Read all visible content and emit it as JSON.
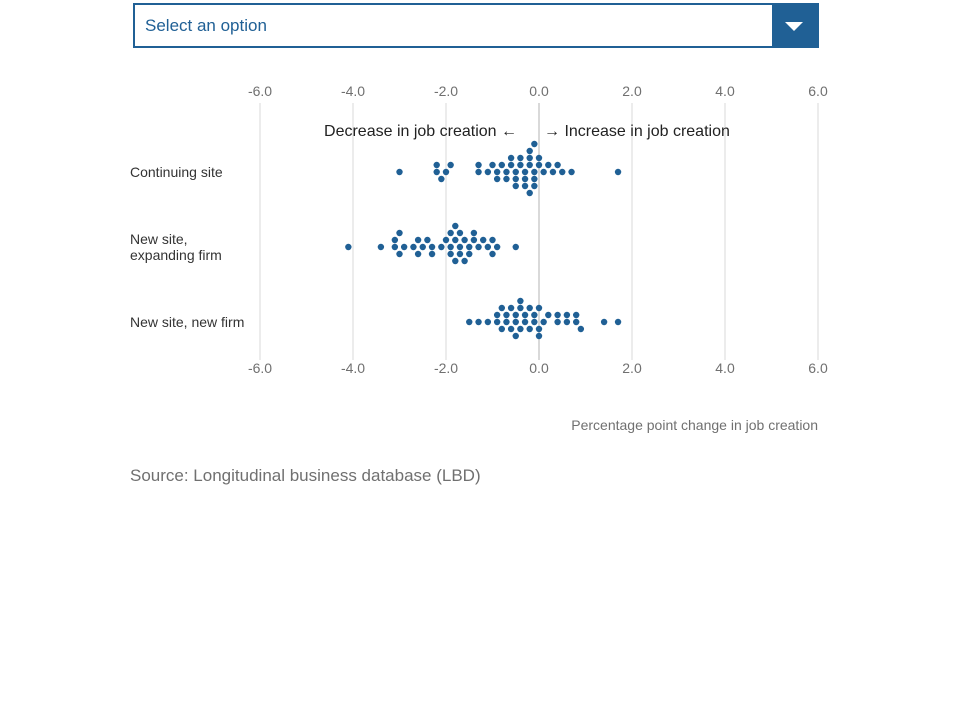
{
  "dropdown": {
    "placeholder": "Select an option",
    "icon": "chevron-down-icon"
  },
  "colors": {
    "accent": "#206095",
    "dot": "#206095",
    "grid": "#d9d9d9",
    "zero_line": "#b3b3b3",
    "tick_text": "#707070"
  },
  "chart_data": {
    "type": "scatter",
    "subtype": "beeswarm",
    "xlabel": "Percentage point change in job creation",
    "xlim": [
      -6,
      6
    ],
    "xticks": [
      -6,
      -4,
      -2,
      0,
      2,
      4,
      6
    ],
    "tick_labels": [
      "-6.0",
      "-4.0",
      "-2.0",
      "0.0",
      "2.0",
      "4.0",
      "6.0"
    ],
    "grid": true,
    "annotation_left": "Decrease in job creation ←",
    "annotation_right": "→ Increase in job creation",
    "categories": [
      "Continuing site",
      "New site, expanding firm",
      "New site, new firm"
    ],
    "series": [
      {
        "category": "Continuing site",
        "values": [
          -3.0,
          -2.2,
          -2.2,
          -2.1,
          -2.0,
          -1.9,
          -1.3,
          -1.3,
          -1.1,
          -1.0,
          -0.9,
          -0.9,
          -0.8,
          -0.7,
          -0.7,
          -0.6,
          -0.6,
          -0.5,
          -0.5,
          -0.5,
          -0.4,
          -0.4,
          -0.3,
          -0.3,
          -0.3,
          -0.2,
          -0.2,
          -0.2,
          -0.2,
          -0.1,
          -0.1,
          -0.1,
          -0.1,
          0.0,
          0.0,
          0.1,
          0.2,
          0.3,
          0.4,
          0.5,
          0.7,
          1.7
        ]
      },
      {
        "category": "New site, expanding firm",
        "values": [
          -4.1,
          -3.4,
          -3.1,
          -3.1,
          -3.0,
          -3.0,
          -2.9,
          -2.7,
          -2.6,
          -2.6,
          -2.5,
          -2.4,
          -2.3,
          -2.3,
          -2.1,
          -2.0,
          -1.9,
          -1.9,
          -1.9,
          -1.8,
          -1.8,
          -1.8,
          -1.7,
          -1.7,
          -1.7,
          -1.6,
          -1.6,
          -1.5,
          -1.5,
          -1.4,
          -1.4,
          -1.3,
          -1.2,
          -1.1,
          -1.0,
          -1.0,
          -0.9,
          -0.5
        ]
      },
      {
        "category": "New site, new firm",
        "values": [
          -1.5,
          -1.3,
          -1.1,
          -0.9,
          -0.9,
          -0.8,
          -0.8,
          -0.7,
          -0.7,
          -0.6,
          -0.6,
          -0.5,
          -0.5,
          -0.5,
          -0.4,
          -0.4,
          -0.4,
          -0.3,
          -0.3,
          -0.2,
          -0.2,
          -0.1,
          -0.1,
          0.0,
          0.0,
          0.0,
          0.1,
          0.2,
          0.4,
          0.4,
          0.6,
          0.6,
          0.8,
          0.8,
          0.9,
          1.4,
          1.7
        ]
      }
    ]
  },
  "footer": {
    "source": "Source: Longitudinal business database (LBD)"
  }
}
